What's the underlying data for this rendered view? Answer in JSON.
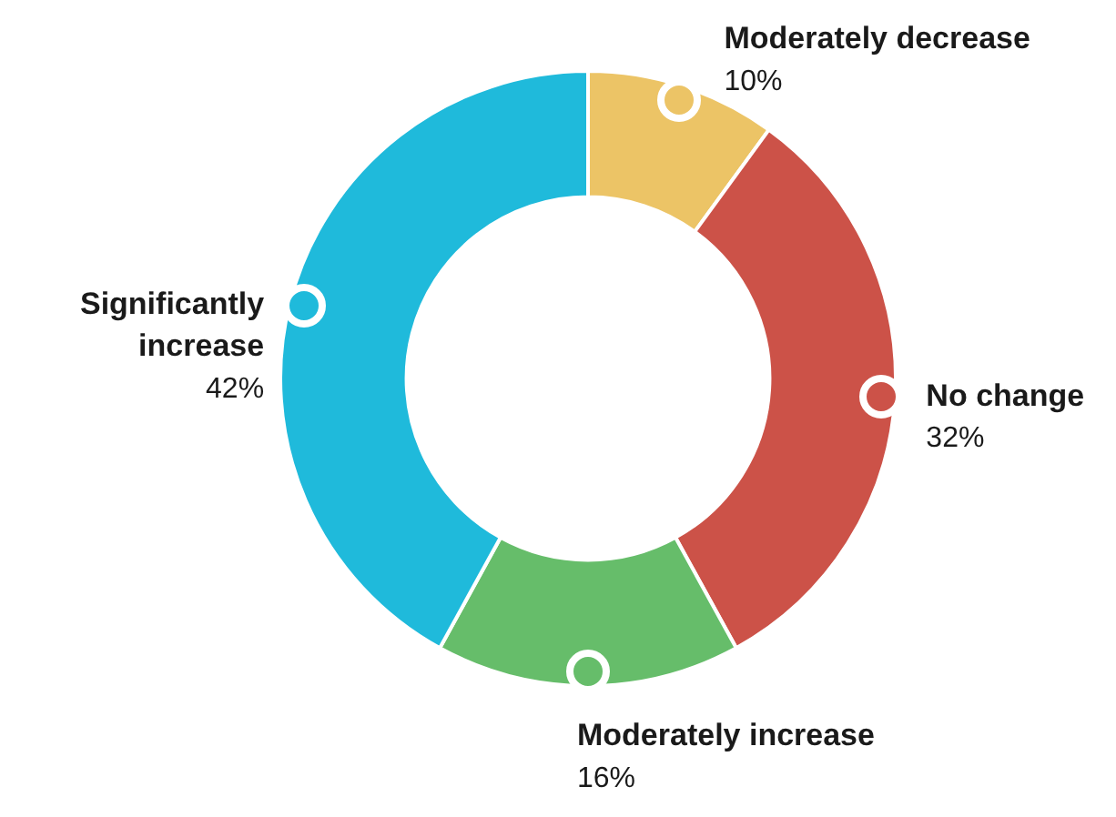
{
  "chart_data": {
    "type": "donut",
    "categories": [
      "Moderately decrease",
      "No change",
      "Moderately increase",
      "Significantly increase"
    ],
    "values": [
      10,
      32,
      16,
      42
    ],
    "colors": [
      "#ecc466",
      "#cc5248",
      "#66bd6a",
      "#1fbadb"
    ],
    "value_labels": [
      "10%",
      "32%",
      "16%",
      "42%"
    ]
  }
}
